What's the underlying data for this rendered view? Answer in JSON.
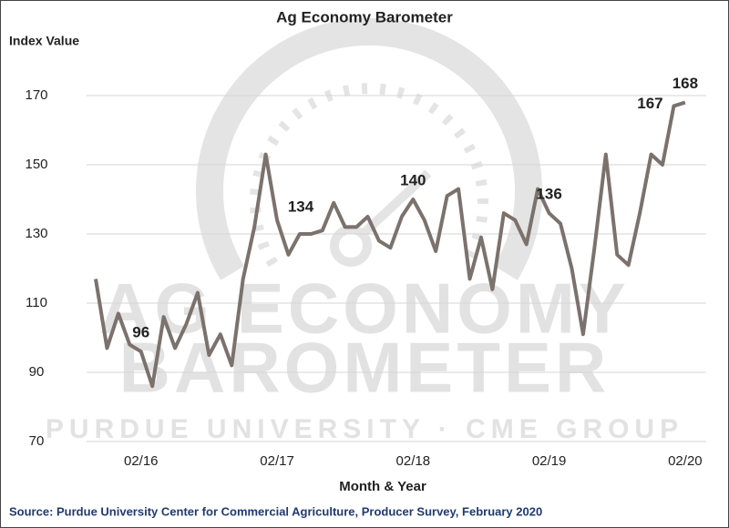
{
  "chart_data": {
    "type": "line",
    "title": "Ag Economy Barometer",
    "y_label": "Index Value",
    "x_label": "Month & Year",
    "source": "Source: Purdue University Center for Commercial Agriculture, Producer Survey, February 2020",
    "watermark": [
      "AG ECONOMY",
      "BAROMETER",
      "PURDUE UNIVERSITY · CME GROUP"
    ],
    "categories": [
      null,
      null,
      null,
      null,
      "02/16",
      null,
      null,
      null,
      null,
      null,
      null,
      null,
      null,
      null,
      null,
      null,
      "02/17",
      null,
      null,
      null,
      null,
      null,
      null,
      null,
      null,
      null,
      null,
      null,
      "02/18",
      null,
      null,
      null,
      null,
      null,
      null,
      null,
      null,
      null,
      null,
      null,
      "02/19",
      null,
      null,
      null,
      null,
      null,
      null,
      null,
      null,
      null,
      null,
      null,
      "02/20"
    ],
    "series": [
      {
        "name": "Ag Economy Barometer",
        "color": "#7b726d",
        "values": [
          117,
          97,
          107,
          98,
          96,
          86,
          106,
          97,
          104,
          113,
          95,
          101,
          92,
          117,
          132,
          153,
          134,
          124,
          130,
          130,
          131,
          139,
          132,
          132,
          135,
          128,
          126,
          135,
          140,
          134,
          125,
          141,
          143,
          117,
          129,
          114,
          136,
          134,
          127,
          143,
          136,
          133,
          120,
          101,
          126,
          153,
          124,
          121,
          136,
          153,
          150,
          167,
          168
        ],
        "value_labels": [
          null,
          null,
          null,
          null,
          "96",
          null,
          null,
          null,
          null,
          null,
          null,
          null,
          null,
          null,
          null,
          null,
          "134",
          null,
          null,
          null,
          null,
          null,
          null,
          null,
          null,
          null,
          null,
          null,
          "140",
          null,
          null,
          null,
          null,
          null,
          null,
          null,
          null,
          null,
          null,
          null,
          "136",
          null,
          null,
          null,
          null,
          null,
          null,
          null,
          null,
          null,
          null,
          "167",
          "168"
        ]
      }
    ],
    "ylim": [
      70,
      170
    ],
    "yticks": [
      70,
      90,
      110,
      130,
      150,
      170
    ],
    "grid": true
  }
}
